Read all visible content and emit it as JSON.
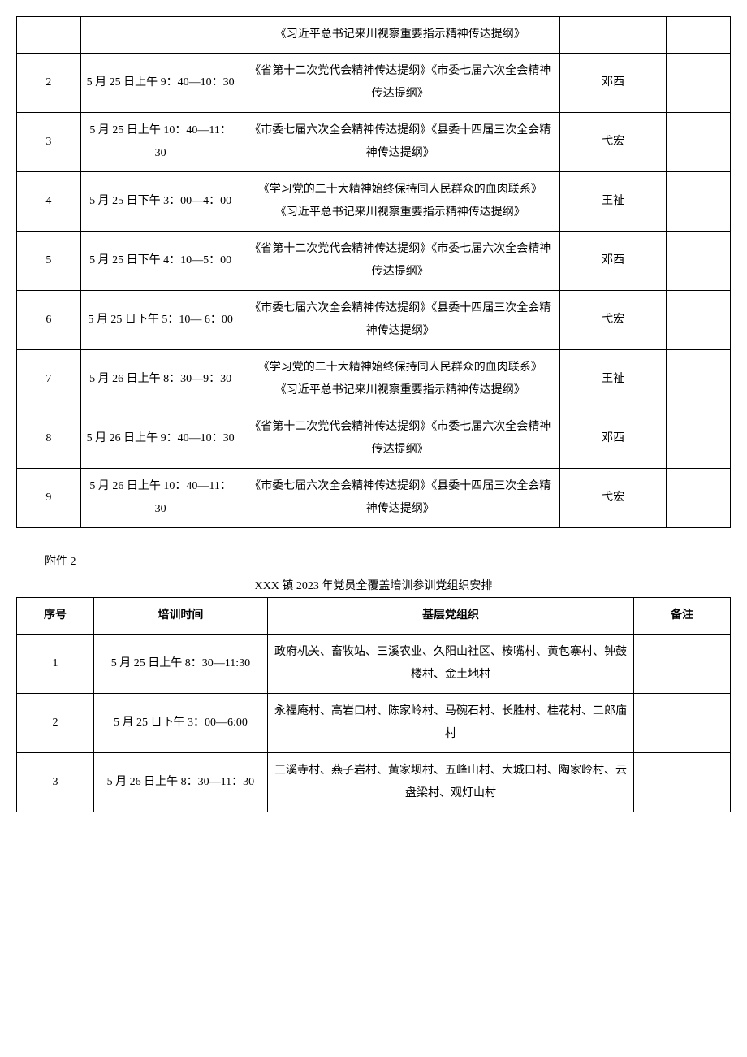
{
  "table1": {
    "rows": [
      {
        "seq": "",
        "time": "",
        "content": "《习近平总书记来川视察重要指示精神传达提纲》",
        "speaker": "",
        "remark": ""
      },
      {
        "seq": "2",
        "time": "5 月 25 日上午 9：40—10：30",
        "content": "《省第十二次党代会精神传达提纲》《市委七届六次全会精神传达提纲》",
        "speaker": "邓西",
        "remark": ""
      },
      {
        "seq": "3",
        "time": "5 月 25 日上午 10：40—11：30",
        "content": "《市委七届六次全会精神传达提纲》《县委十四届三次全会精神传达提纲》",
        "speaker": "弋宏",
        "remark": ""
      },
      {
        "seq": "4",
        "time": "5 月 25 日下午 3：00—4：00",
        "content": "《学习党的二十大精神始终保持同人民群众的血肉联系》\n《习近平总书记来川视察重要指示精神传达提纲》",
        "speaker": "王祉",
        "remark": ""
      },
      {
        "seq": "5",
        "time": "5 月 25 日下午 4：10—5：00",
        "content": "《省第十二次党代会精神传达提纲》《市委七届六次全会精神传达提纲》",
        "speaker": "邓西",
        "remark": ""
      },
      {
        "seq": "6",
        "time": "5 月 25 日下午 5：10— 6：00",
        "content": "《市委七届六次全会精神传达提纲》《县委十四届三次全会精神传达提纲》",
        "speaker": "弋宏",
        "remark": ""
      },
      {
        "seq": "7",
        "time": "5 月 26 日上午 8：30—9：30",
        "content": "《学习党的二十大精神始终保持同人民群众的血肉联系》\n《习近平总书记来川视察重要指示精神传达提纲》",
        "speaker": "王祉",
        "remark": ""
      },
      {
        "seq": "8",
        "time": "5 月 26 日上午 9：40—10：30",
        "content": "《省第十二次党代会精神传达提纲》《市委七届六次全会精神传达提纲》",
        "speaker": "邓西",
        "remark": ""
      },
      {
        "seq": "9",
        "time": "5 月 26 日上午 10：40—11：30",
        "content": "《市委七届六次全会精神传达提纲》《县委十四届三次全会精神传达提纲》",
        "speaker": "弋宏",
        "remark": ""
      }
    ]
  },
  "appendix2": {
    "label": "附件 2",
    "title": "XXX 镇 2023 年党员全覆盖培训参训党组织安排",
    "headers": {
      "seq": "序号",
      "time": "培训时间",
      "org": "基层党组织",
      "remark": "备注"
    },
    "rows": [
      {
        "seq": "1",
        "time": "5 月 25 日上午 8：30—11:30",
        "org": "政府机关、畜牧站、三溪农业、久阳山社区、桉嘴村、黄包寨村、钟鼓楼村、金土地村",
        "remark": ""
      },
      {
        "seq": "2",
        "time": "5 月 25 日下午 3：00—6:00",
        "org": "永福庵村、高岩口村、陈家岭村、马碗石村、长胜村、桂花村、二郎庙村",
        "remark": ""
      },
      {
        "seq": "3",
        "time": "5 月 26 日上午 8：30—11：30",
        "org": "三溪寺村、燕子岩村、黄家坝村、五峰山村、大城口村、陶家岭村、云盘梁村、观灯山村",
        "remark": ""
      }
    ]
  }
}
